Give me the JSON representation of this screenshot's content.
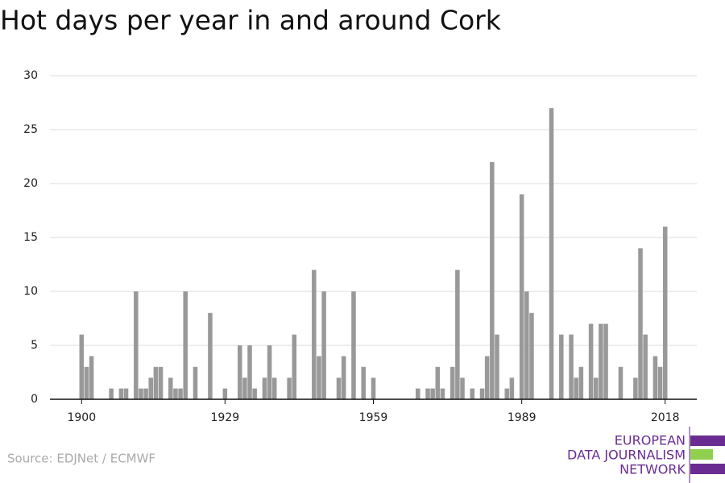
{
  "chart_data": {
    "type": "bar",
    "title": "Hot days per year in and around Cork",
    "source": "Source: EDJNet / ECMWF",
    "color": "#999999",
    "x": [
      1900,
      1901,
      1902,
      1903,
      1904,
      1905,
      1906,
      1907,
      1908,
      1909,
      1910,
      1911,
      1912,
      1913,
      1914,
      1915,
      1916,
      1917,
      1918,
      1919,
      1920,
      1921,
      1922,
      1923,
      1924,
      1925,
      1926,
      1927,
      1928,
      1929,
      1930,
      1931,
      1932,
      1933,
      1934,
      1935,
      1936,
      1937,
      1938,
      1939,
      1940,
      1941,
      1942,
      1943,
      1944,
      1945,
      1946,
      1947,
      1948,
      1949,
      1950,
      1951,
      1952,
      1953,
      1954,
      1955,
      1956,
      1957,
      1958,
      1959,
      1960,
      1961,
      1962,
      1963,
      1964,
      1965,
      1966,
      1967,
      1968,
      1969,
      1970,
      1971,
      1972,
      1973,
      1974,
      1975,
      1976,
      1977,
      1978,
      1979,
      1980,
      1981,
      1982,
      1983,
      1984,
      1985,
      1986,
      1987,
      1988,
      1989,
      1990,
      1991,
      1992,
      1993,
      1994,
      1995,
      1996,
      1997,
      1998,
      1999,
      2000,
      2001,
      2002,
      2003,
      2004,
      2005,
      2006,
      2007,
      2008,
      2009,
      2010,
      2011,
      2012,
      2013,
      2014,
      2015,
      2016,
      2017,
      2018
    ],
    "values": [
      6,
      3,
      4,
      0,
      0,
      0,
      1,
      0,
      1,
      1,
      0,
      10,
      1,
      1,
      2,
      3,
      3,
      0,
      2,
      1,
      1,
      10,
      0,
      3,
      0,
      0,
      8,
      0,
      0,
      1,
      0,
      0,
      5,
      2,
      5,
      1,
      0,
      2,
      5,
      2,
      0,
      0,
      2,
      6,
      0,
      0,
      0,
      12,
      4,
      10,
      0,
      0,
      2,
      4,
      0,
      10,
      0,
      3,
      0,
      2,
      0,
      0,
      0,
      0,
      0,
      0,
      0,
      0,
      1,
      0,
      1,
      1,
      3,
      1,
      0,
      3,
      12,
      2,
      0,
      1,
      0,
      1,
      4,
      22,
      6,
      0,
      1,
      2,
      0,
      19,
      10,
      8,
      0,
      0,
      0,
      27,
      0,
      6,
      0,
      6,
      2,
      3,
      0,
      7,
      2,
      7,
      7,
      0,
      0,
      3,
      0,
      0,
      2,
      14,
      6,
      0,
      4,
      3,
      16
    ],
    "xlim": [
      1893.6,
      2024.4
    ],
    "xticks": [
      1900,
      1929,
      1959,
      1989,
      2018
    ],
    "ylim": [
      0,
      30
    ],
    "yticks": [
      0,
      5,
      10,
      15,
      20,
      25,
      30
    ],
    "grid": true
  },
  "logo": [
    "EUROPEAN",
    "DATA JOURNALISM",
    "NETWORK"
  ]
}
